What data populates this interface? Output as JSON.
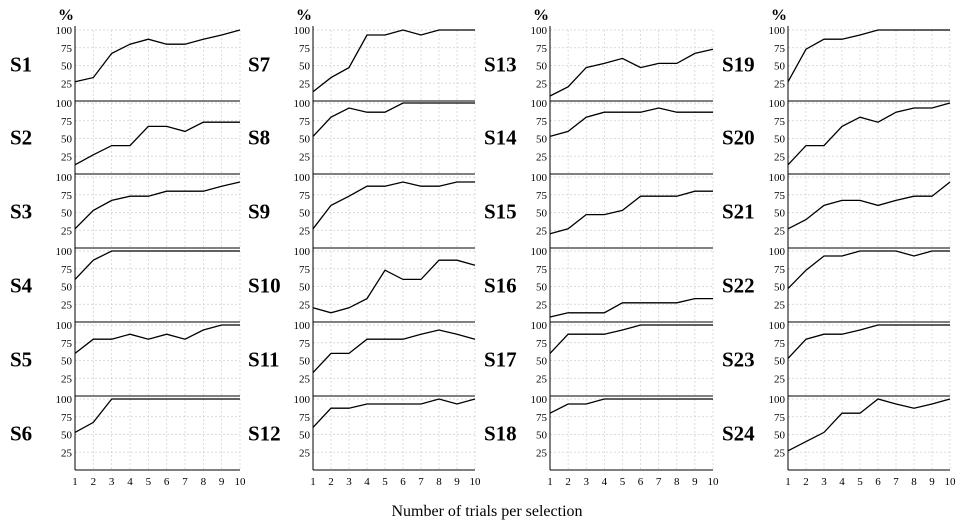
{
  "y_unit": "%",
  "xlabel": "Number of trials per selection",
  "chart_data": {
    "type": "line",
    "y_ticks": [
      "25",
      "50",
      "75",
      "100"
    ],
    "x_ticks": [
      "1",
      "2",
      "3",
      "4",
      "5",
      "6",
      "7",
      "8",
      "9",
      "10"
    ],
    "ylim": [
      0,
      100
    ],
    "xlim": [
      1,
      10
    ],
    "grid": true,
    "panels": [
      {
        "name": "S1",
        "x": [
          1,
          2,
          3,
          4,
          5,
          6,
          7,
          8,
          9,
          10
        ],
        "values": [
          27,
          33,
          67,
          80,
          87,
          80,
          80,
          87,
          93,
          100
        ]
      },
      {
        "name": "S2",
        "x": [
          1,
          2,
          3,
          4,
          5,
          6,
          7,
          8,
          9,
          10
        ],
        "values": [
          13,
          27,
          40,
          40,
          67,
          67,
          60,
          73,
          73,
          73
        ]
      },
      {
        "name": "S3",
        "x": [
          1,
          2,
          3,
          4,
          5,
          6,
          7,
          8,
          9,
          10
        ],
        "values": [
          27,
          53,
          67,
          73,
          73,
          80,
          80,
          80,
          87,
          93
        ]
      },
      {
        "name": "S4",
        "x": [
          1,
          2,
          3,
          4,
          5,
          6,
          7,
          8,
          9,
          10
        ],
        "values": [
          60,
          87,
          100,
          100,
          100,
          100,
          100,
          100,
          100,
          100
        ]
      },
      {
        "name": "S5",
        "x": [
          1,
          2,
          3,
          4,
          5,
          6,
          7,
          8,
          9,
          10
        ],
        "values": [
          60,
          80,
          80,
          87,
          80,
          87,
          80,
          93,
          100,
          100
        ]
      },
      {
        "name": "S6",
        "x": [
          1,
          2,
          3,
          4,
          5,
          6,
          7,
          8,
          9,
          10
        ],
        "values": [
          53,
          67,
          100,
          100,
          100,
          100,
          100,
          100,
          100,
          100
        ]
      },
      {
        "name": "S7",
        "x": [
          1,
          2,
          3,
          4,
          5,
          6,
          7,
          8,
          9,
          10
        ],
        "values": [
          13,
          33,
          47,
          93,
          93,
          100,
          93,
          100,
          100,
          100
        ]
      },
      {
        "name": "S8",
        "x": [
          1,
          2,
          3,
          4,
          5,
          6,
          7,
          8,
          9,
          10
        ],
        "values": [
          53,
          80,
          93,
          87,
          87,
          100,
          100,
          100,
          100,
          100
        ]
      },
      {
        "name": "S9",
        "x": [
          1,
          2,
          3,
          4,
          5,
          6,
          7,
          8,
          9,
          10
        ],
        "values": [
          27,
          60,
          73,
          87,
          87,
          93,
          87,
          87,
          93,
          93
        ]
      },
      {
        "name": "S10",
        "x": [
          1,
          2,
          3,
          4,
          5,
          6,
          7,
          8,
          9,
          10
        ],
        "values": [
          20,
          13,
          20,
          33,
          73,
          60,
          60,
          87,
          87,
          80
        ]
      },
      {
        "name": "S11",
        "x": [
          1,
          2,
          3,
          4,
          5,
          6,
          7,
          8,
          9,
          10
        ],
        "values": [
          33,
          60,
          60,
          80,
          80,
          80,
          87,
          93,
          87,
          80
        ]
      },
      {
        "name": "S12",
        "x": [
          1,
          2,
          3,
          4,
          5,
          6,
          7,
          8,
          9,
          10
        ],
        "values": [
          60,
          87,
          87,
          93,
          93,
          93,
          93,
          100,
          93,
          100
        ]
      },
      {
        "name": "S13",
        "x": [
          1,
          2,
          3,
          4,
          5,
          6,
          7,
          8,
          9,
          10
        ],
        "values": [
          7,
          20,
          47,
          53,
          60,
          47,
          53,
          53,
          67,
          73
        ]
      },
      {
        "name": "S14",
        "x": [
          1,
          2,
          3,
          4,
          5,
          6,
          7,
          8,
          9,
          10
        ],
        "values": [
          53,
          60,
          80,
          87,
          87,
          87,
          93,
          87,
          87,
          87
        ]
      },
      {
        "name": "S15",
        "x": [
          1,
          2,
          3,
          4,
          5,
          6,
          7,
          8,
          9,
          10
        ],
        "values": [
          20,
          27,
          47,
          47,
          53,
          73,
          73,
          73,
          80,
          80
        ]
      },
      {
        "name": "S16",
        "x": [
          1,
          2,
          3,
          4,
          5,
          6,
          7,
          8,
          9,
          10
        ],
        "values": [
          7,
          13,
          13,
          13,
          27,
          27,
          27,
          27,
          33,
          33
        ]
      },
      {
        "name": "S17",
        "x": [
          1,
          2,
          3,
          4,
          5,
          6,
          7,
          8,
          9,
          10
        ],
        "values": [
          60,
          87,
          87,
          87,
          93,
          100,
          100,
          100,
          100,
          100
        ]
      },
      {
        "name": "S18",
        "x": [
          1,
          2,
          3,
          4,
          5,
          6,
          7,
          8,
          9,
          10
        ],
        "values": [
          80,
          93,
          93,
          100,
          100,
          100,
          100,
          100,
          100,
          100
        ]
      },
      {
        "name": "S19",
        "x": [
          1,
          2,
          3,
          4,
          5,
          6,
          7,
          8,
          9,
          10
        ],
        "values": [
          27,
          73,
          87,
          87,
          93,
          100,
          100,
          100,
          100,
          100
        ]
      },
      {
        "name": "S20",
        "x": [
          1,
          2,
          3,
          4,
          5,
          6,
          7,
          8,
          9,
          10
        ],
        "values": [
          13,
          40,
          40,
          67,
          80,
          73,
          87,
          93,
          93,
          100
        ]
      },
      {
        "name": "S21",
        "x": [
          1,
          2,
          3,
          4,
          5,
          6,
          7,
          8,
          9,
          10
        ],
        "values": [
          27,
          40,
          60,
          67,
          67,
          60,
          67,
          73,
          73,
          93
        ]
      },
      {
        "name": "S22",
        "x": [
          1,
          2,
          3,
          4,
          5,
          6,
          7,
          8,
          9,
          10
        ],
        "values": [
          47,
          73,
          93,
          93,
          100,
          100,
          100,
          93,
          100,
          100
        ]
      },
      {
        "name": "S23",
        "x": [
          1,
          2,
          3,
          4,
          5,
          6,
          7,
          8,
          9,
          10
        ],
        "values": [
          53,
          80,
          87,
          87,
          93,
          100,
          100,
          100,
          100,
          100
        ]
      },
      {
        "name": "S24",
        "x": [
          1,
          2,
          3,
          4,
          5,
          6,
          7,
          8,
          9,
          10
        ],
        "values": [
          27,
          40,
          53,
          80,
          80,
          100,
          93,
          87,
          93,
          100
        ]
      }
    ]
  }
}
